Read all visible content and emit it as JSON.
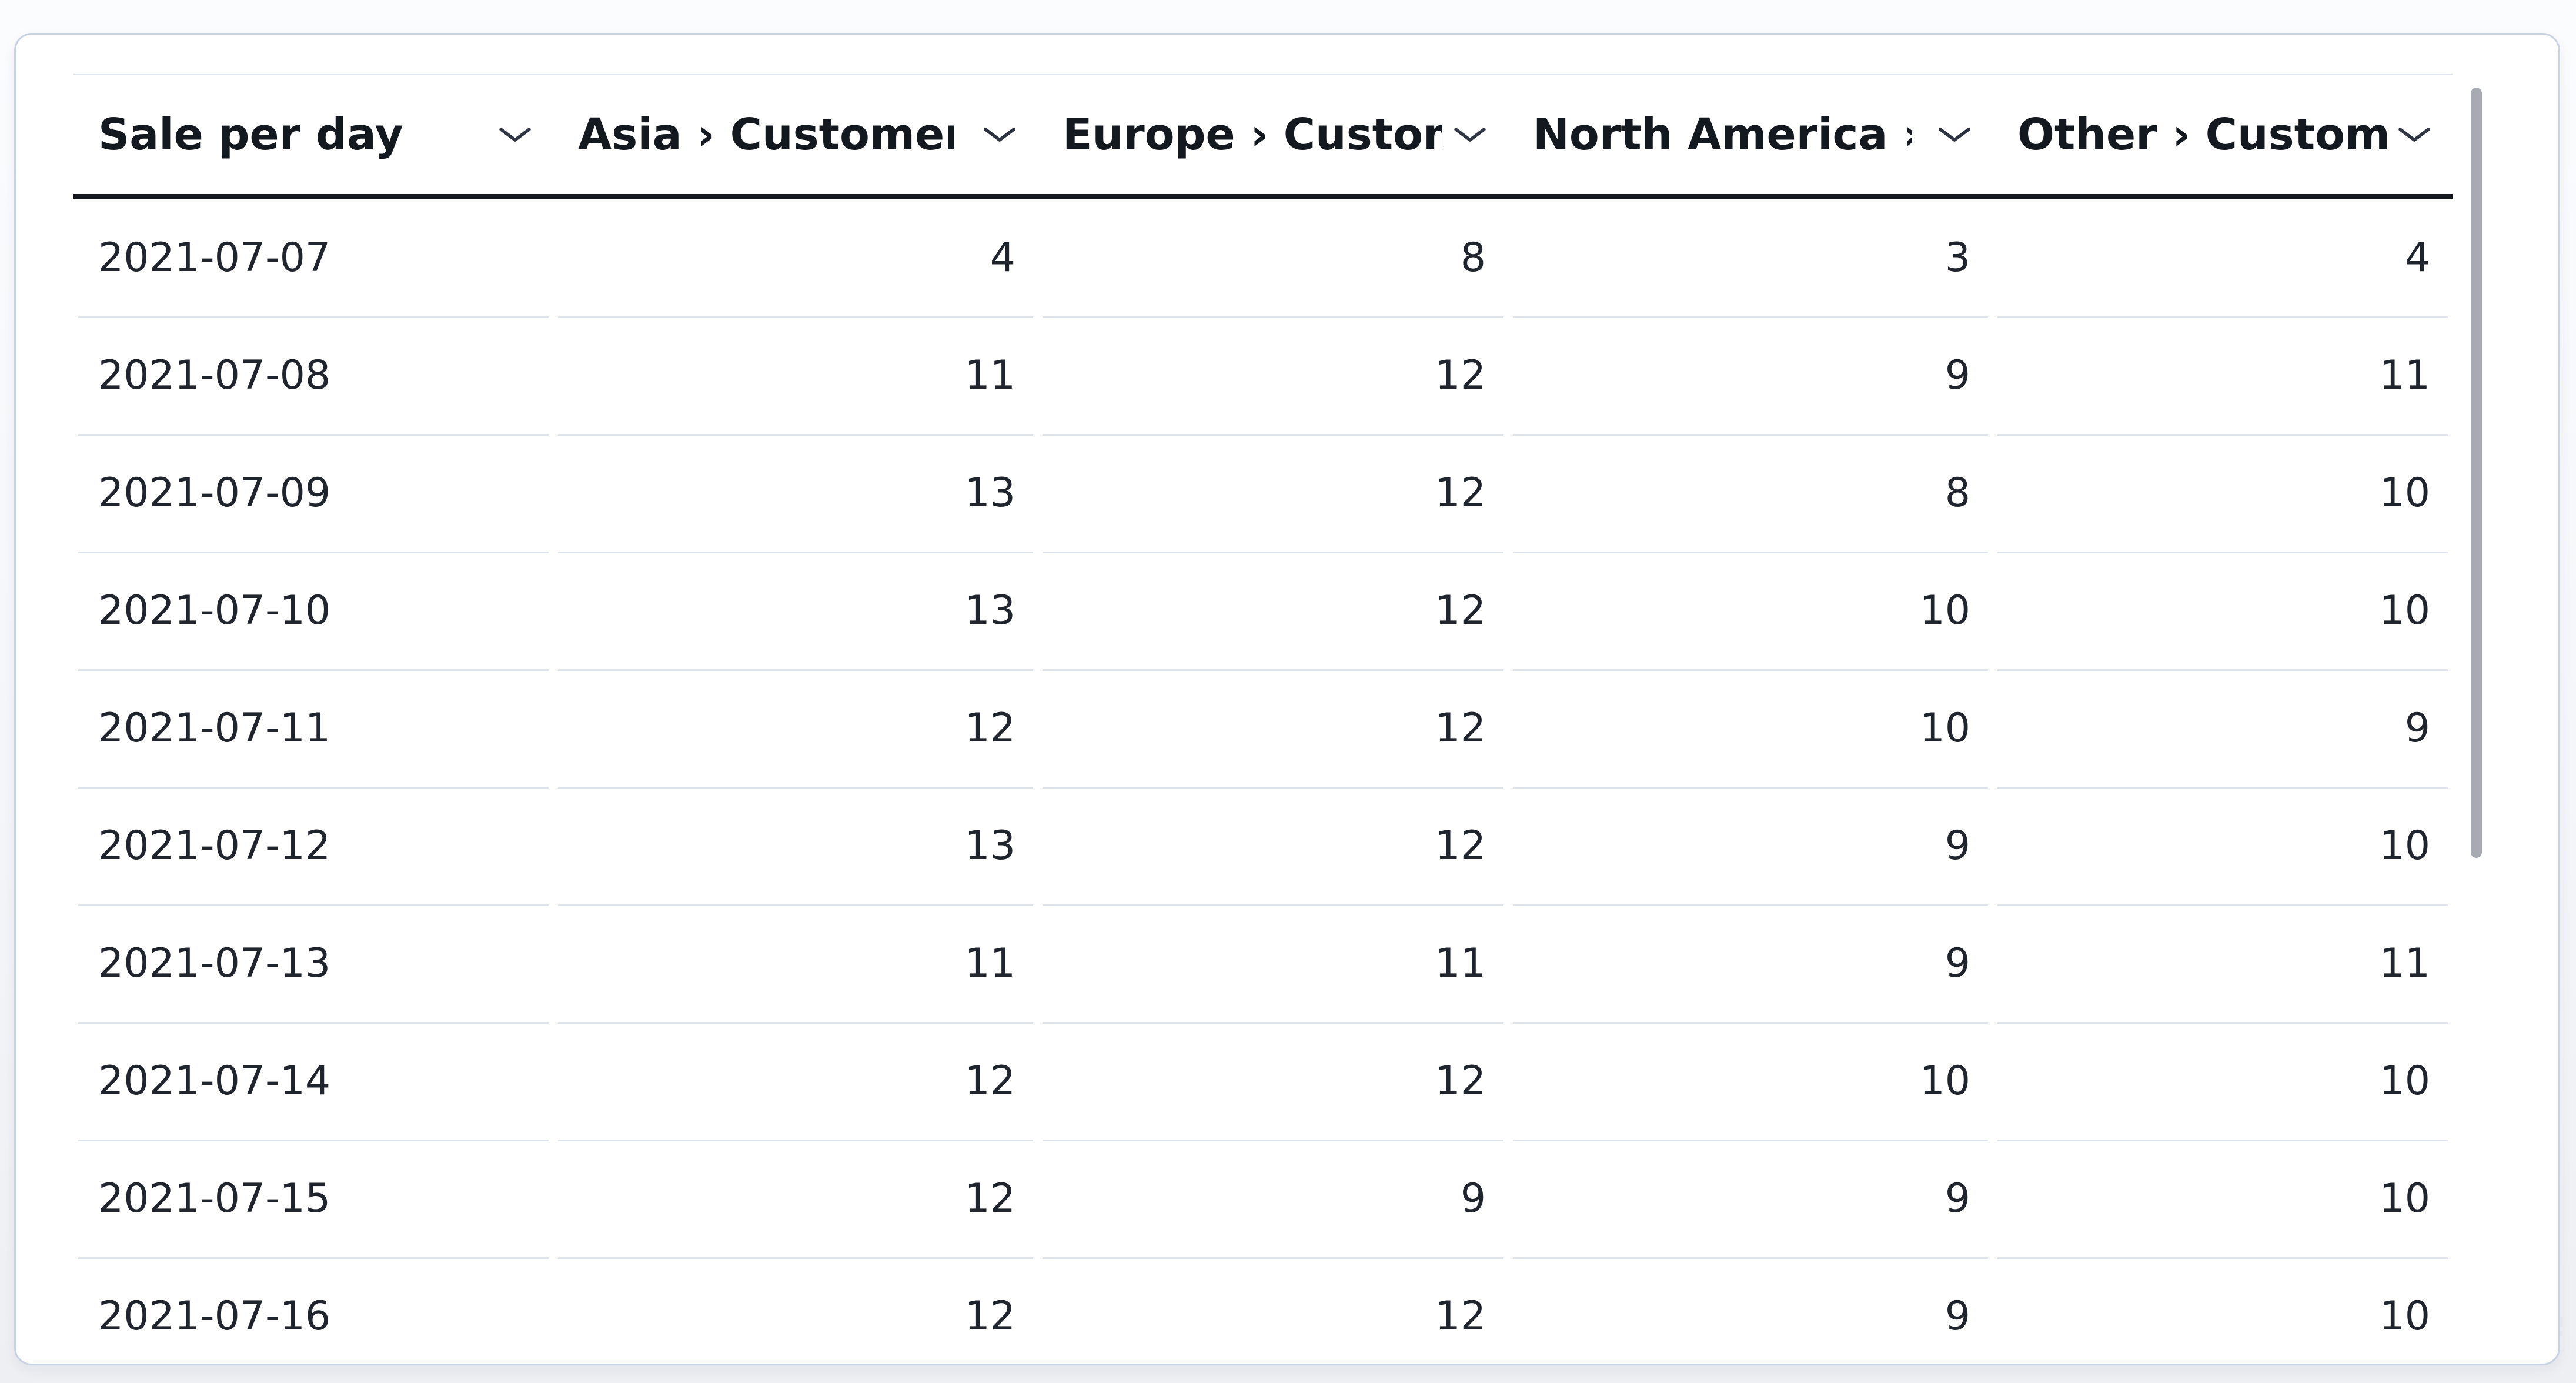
{
  "table": {
    "columns": [
      {
        "id": "date",
        "label": "Sale per day"
      },
      {
        "id": "asia",
        "label": "Asia › Customers"
      },
      {
        "id": "europe",
        "label": "Europe › Customers"
      },
      {
        "id": "north-america",
        "label": "North America › Customers"
      },
      {
        "id": "other",
        "label": "Other › Customers"
      }
    ],
    "rows": [
      [
        "2021-07-07",
        4,
        8,
        3,
        4
      ],
      [
        "2021-07-08",
        11,
        12,
        9,
        11
      ],
      [
        "2021-07-09",
        13,
        12,
        8,
        10
      ],
      [
        "2021-07-10",
        13,
        12,
        10,
        10
      ],
      [
        "2021-07-11",
        12,
        12,
        10,
        9
      ],
      [
        "2021-07-12",
        13,
        12,
        9,
        10
      ],
      [
        "2021-07-13",
        11,
        11,
        9,
        11
      ],
      [
        "2021-07-14",
        12,
        12,
        10,
        10
      ],
      [
        "2021-07-15",
        12,
        9,
        9,
        10
      ],
      [
        "2021-07-16",
        12,
        12,
        9,
        10
      ]
    ]
  },
  "icons": {
    "column_menu": "chevron-down-icon"
  },
  "colors": {
    "card_bg": "#ffffff",
    "card_border": "#c9d2e0",
    "header_text": "#14181f",
    "header_rule": "#14171e",
    "body_text": "#20242c",
    "row_separator": "#dfe3ec",
    "scrollbar_thumb": "#a7abb1",
    "chevron": "#2e3440"
  }
}
